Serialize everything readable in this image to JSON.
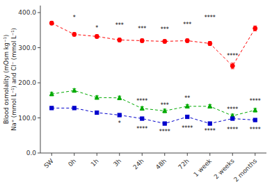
{
  "chart_data": {
    "type": "line",
    "y_label": "Blood osmolality (mOsm kg⁻¹)\nNa⁺ (mmol L⁻¹) and Cl⁻ (mmol L⁻¹)",
    "categories": [
      "SW",
      "0h",
      "1h",
      "3h",
      "24h",
      "48h",
      "72h",
      "1 week",
      "2 weeks",
      "2 months"
    ],
    "series": [
      {
        "color": "#ff0000",
        "marker": "circle",
        "line_style": "dashed",
        "values": [
          370,
          338,
          332,
          322,
          320,
          318,
          320,
          312,
          248,
          355
        ],
        "errors": [
          5,
          5,
          5,
          5,
          5,
          5,
          5,
          6,
          8,
          7
        ]
      },
      {
        "color": "#00aa00",
        "marker": "triangle",
        "line_style": "dashed",
        "values": [
          168,
          178,
          158,
          157,
          127,
          120,
          133,
          133,
          106,
          122
        ],
        "errors": [
          5,
          5,
          5,
          5,
          5,
          5,
          5,
          5,
          5,
          5
        ]
      },
      {
        "color": "#0000cc",
        "marker": "square",
        "line_style": "dashed",
        "values": [
          128,
          128,
          115,
          108,
          98,
          84,
          103,
          84,
          98,
          94
        ],
        "errors": [
          4,
          4,
          4,
          4,
          4,
          4,
          4,
          4,
          4,
          4
        ]
      }
    ],
    "annotations": [
      {
        "category": "0h",
        "y": 380,
        "text": "*"
      },
      {
        "category": "1h",
        "y": 350,
        "text": "*"
      },
      {
        "category": "3h",
        "y": 358,
        "text": "***"
      },
      {
        "category": "24h",
        "y": 348,
        "text": "***"
      },
      {
        "category": "48h",
        "y": 346,
        "text": "***"
      },
      {
        "category": "72h",
        "y": 360,
        "text": "***"
      },
      {
        "category": "1 week",
        "y": 380,
        "text": "****"
      },
      {
        "category": "2 weeks",
        "y": 272,
        "text": "****"
      },
      {
        "category": "24h",
        "y": 142,
        "text": "****"
      },
      {
        "category": "48h",
        "y": 130,
        "text": "***"
      },
      {
        "category": "72h",
        "y": 150,
        "text": "**"
      },
      {
        "category": "2 weeks",
        "y": 118,
        "text": "****"
      },
      {
        "category": "2 months",
        "y": 142,
        "text": "****"
      },
      {
        "category": "3h",
        "y": 80,
        "text": "*"
      },
      {
        "category": "24h",
        "y": 64,
        "text": "****"
      },
      {
        "category": "48h",
        "y": 56,
        "text": "****"
      },
      {
        "category": "72h",
        "y": 65,
        "text": "****"
      },
      {
        "category": "1 week",
        "y": 57,
        "text": "****"
      },
      {
        "category": "2 weeks",
        "y": 62,
        "text": "****"
      },
      {
        "category": "2 months",
        "y": 62,
        "text": "****"
      }
    ],
    "ylim": [
      0,
      420
    ],
    "yticks": [
      {
        "value": 0,
        "label": "0.0"
      },
      {
        "value": 100,
        "label": "100.0"
      },
      {
        "value": 200,
        "label": "200.0"
      },
      {
        "value": 300,
        "label": "300.0"
      },
      {
        "value": 400,
        "label": "400.0"
      }
    ],
    "grid": false
  }
}
